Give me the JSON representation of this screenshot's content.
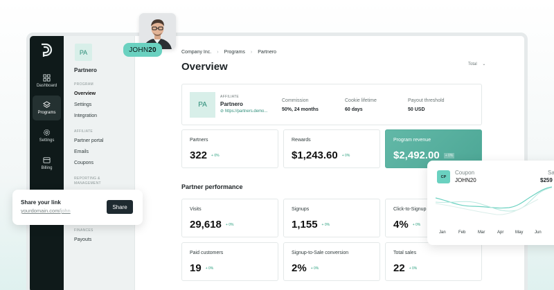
{
  "overlay": {
    "coupon_pill": {
      "prefix": "JOHN",
      "suffix": "20"
    },
    "share": {
      "title": "Share your link",
      "url_prefix": "yourdomain.com/",
      "url_slug": "john",
      "button": "Share"
    },
    "coupon_card": {
      "badge": "CP",
      "label": "Coupon",
      "code": "JOHN20",
      "right_label": "Sa",
      "right_value": "$259",
      "months": [
        "Jan",
        "Feb",
        "Mar",
        "Apr",
        "May",
        "Jun"
      ]
    }
  },
  "rail": {
    "items": [
      {
        "label": "Dashboard",
        "icon": "grid-icon",
        "active": false
      },
      {
        "label": "Programs",
        "icon": "layers-icon",
        "active": true
      },
      {
        "label": "Settings",
        "icon": "gear-icon",
        "active": false
      },
      {
        "label": "Billing",
        "icon": "card-icon",
        "active": false
      }
    ]
  },
  "subnav": {
    "badge": "PA",
    "program_name": "Partnero",
    "sections": {
      "program": "PROGRAM",
      "affiliate": "AFFILIATE",
      "reporting": "REPORTING &",
      "reporting2": "MANAGEMENT",
      "finances": "FINANCES"
    },
    "items": {
      "overview": "Overview",
      "settings": "Settings",
      "integration": "Integration",
      "partner_portal": "Partner portal",
      "emails": "Emails",
      "coupons": "Coupons",
      "payouts": "Payouts"
    }
  },
  "main": {
    "breadcrumb": [
      "Company Inc.",
      "Programs",
      "Partnero"
    ],
    "title": "Overview",
    "total_select": "Total",
    "affiliate": {
      "badge": "PA",
      "label": "AFFILIATE",
      "name": "Partnero",
      "link": "https://partners.demo...",
      "stats": [
        {
          "label": "Commission",
          "value": "50%, 24 months"
        },
        {
          "label": "Cookie lifetime",
          "value": "60 days"
        },
        {
          "label": "Payout threshold",
          "value": "50 USD"
        }
      ]
    },
    "top_metrics": [
      {
        "label": "Partners",
        "value": "322",
        "delta": "+ 0%"
      },
      {
        "label": "Rewards",
        "value": "$1,243.60",
        "delta": "+ 0%"
      },
      {
        "label": "Program revenue",
        "value": "$2,492.00",
        "delta": "+ 0%"
      }
    ],
    "performance_title": "Partner performance",
    "performance": [
      {
        "label": "Visits",
        "value": "29,618",
        "delta": "+ 0%"
      },
      {
        "label": "Signups",
        "value": "1,155",
        "delta": "+ 0%"
      },
      {
        "label": "Click-to-Signup co",
        "value": "4%",
        "delta": "+ 0%"
      },
      {
        "label": "Paid customers",
        "value": "19",
        "delta": "+ 0%"
      },
      {
        "label": "Signup-to-Sale conversion",
        "value": "2%",
        "delta": "+ 0%"
      },
      {
        "label": "Total sales",
        "value": "22",
        "delta": "+ 0%"
      }
    ]
  },
  "colors": {
    "accent": "#6ad1c0",
    "rail": "#0f1a1a",
    "revenue_card": "#54ad9c"
  }
}
